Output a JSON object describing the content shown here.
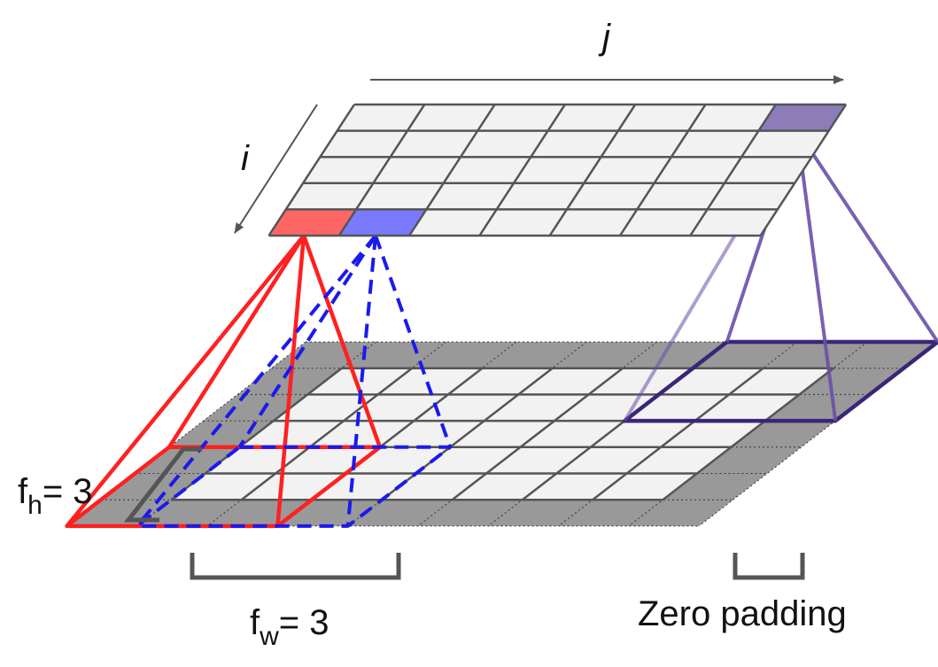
{
  "labels": {
    "j": "j",
    "i": "i",
    "fh_base": "f",
    "fh_sub": "h",
    "fh_eq": "= 3",
    "fw_base": "f",
    "fw_sub": "w",
    "fw_eq": "= 3",
    "zero_padding": "Zero padding"
  },
  "colors": {
    "cell_fill": "#f2f2f2",
    "grid_line": "#555555",
    "padding_fill": "#999999",
    "red": "#ff2020",
    "blue": "#1a1aee",
    "purple": "#6a4fa8",
    "purple_dark": "#3a2577",
    "red_cell": "#ff6666",
    "blue_cell": "#7a7aff",
    "purple_cell": "#8c7db8",
    "bracket": "#555555"
  }
}
